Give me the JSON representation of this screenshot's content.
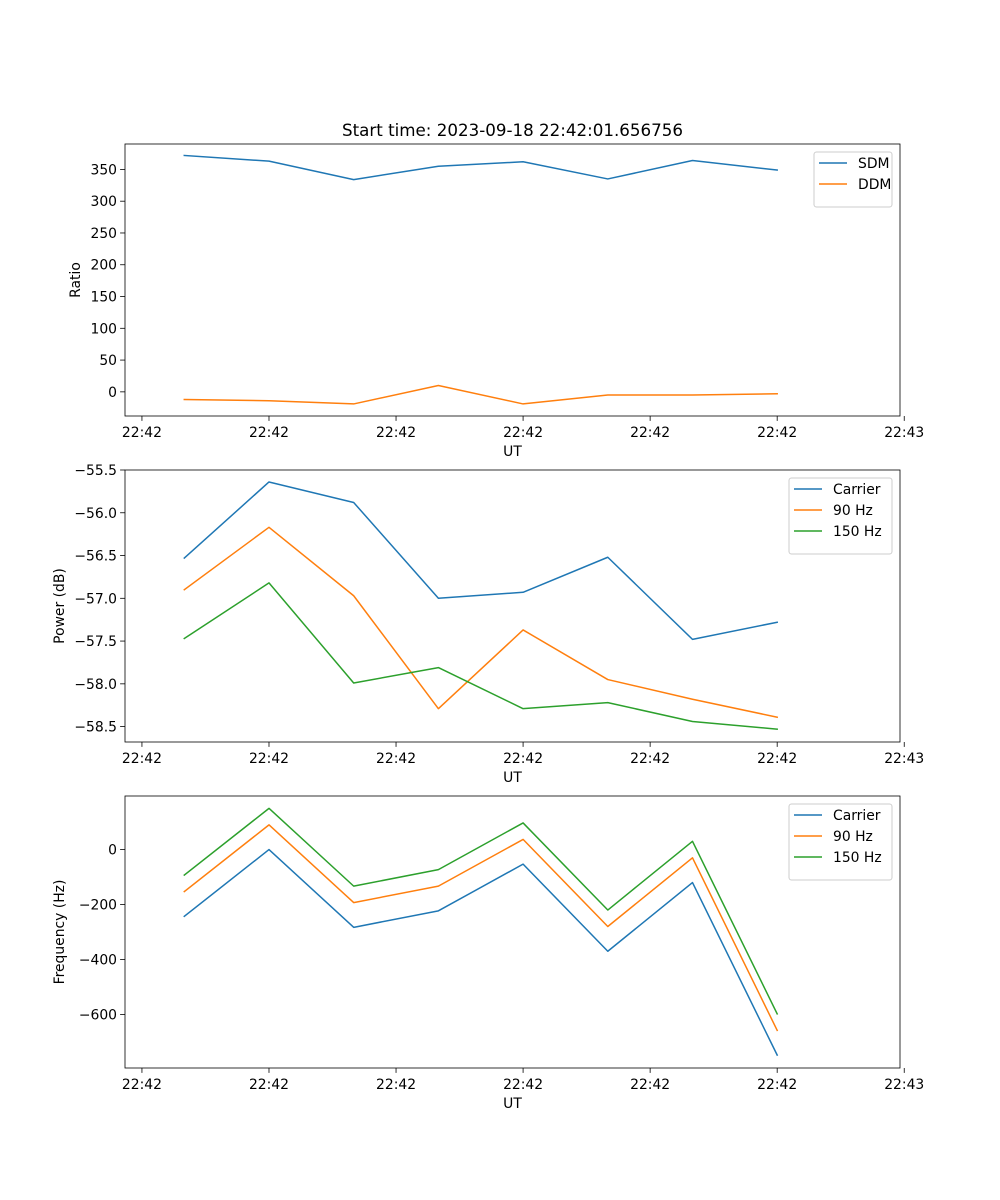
{
  "figure_title": "Start time: 2023-09-18 22:42:01.656756",
  "chart_data": [
    {
      "type": "line",
      "title": "Start time: 2023-09-18 22:42:01.656756",
      "xlabel": "UT",
      "ylabel": "Ratio",
      "x": [
        0,
        1,
        2,
        3,
        4,
        5,
        6,
        7
      ],
      "xlim": [
        -0.7,
        8.45
      ],
      "xticks": [
        {
          "value": -0.5,
          "label": "22:42"
        },
        {
          "value": 1.0,
          "label": "22:42"
        },
        {
          "value": 2.5,
          "label": "22:42"
        },
        {
          "value": 4.0,
          "label": "22:42"
        },
        {
          "value": 5.5,
          "label": "22:42"
        },
        {
          "value": 7.0,
          "label": "22:42"
        },
        {
          "value": 8.5,
          "label": "22:43"
        }
      ],
      "ylim": [
        -38,
        390
      ],
      "yticks": [
        0,
        50,
        100,
        150,
        200,
        250,
        300,
        350
      ],
      "legend_position": "top-right",
      "series": [
        {
          "name": "SDM",
          "color": "#1f77b4",
          "values": [
            372,
            363,
            334,
            355,
            362,
            335,
            364,
            349
          ]
        },
        {
          "name": "DDM",
          "color": "#ff7f0e",
          "values": [
            -12,
            -14,
            -19,
            10,
            -19,
            -5,
            -5,
            -3
          ]
        }
      ]
    },
    {
      "type": "line",
      "title": "",
      "xlabel": "UT",
      "ylabel": "Power (dB)",
      "x": [
        0,
        1,
        2,
        3,
        4,
        5,
        6,
        7
      ],
      "xlim": [
        -0.7,
        8.45
      ],
      "xticks": [
        {
          "value": -0.5,
          "label": "22:42"
        },
        {
          "value": 1.0,
          "label": "22:42"
        },
        {
          "value": 2.5,
          "label": "22:42"
        },
        {
          "value": 4.0,
          "label": "22:42"
        },
        {
          "value": 5.5,
          "label": "22:42"
        },
        {
          "value": 7.0,
          "label": "22:42"
        },
        {
          "value": 8.5,
          "label": "22:43"
        }
      ],
      "ylim": [
        -58.68,
        -55.5
      ],
      "yticks": [
        -58.5,
        -58.0,
        -57.5,
        -57.0,
        -56.5,
        -56.0,
        -55.5
      ],
      "ytick_format": "fixed1",
      "legend_position": "top-right",
      "series": [
        {
          "name": "Carrier",
          "color": "#1f77b4",
          "values": [
            -56.53,
            -55.64,
            -55.88,
            -57.0,
            -56.93,
            -56.52,
            -57.48,
            -57.28
          ]
        },
        {
          "name": "90 Hz",
          "color": "#ff7f0e",
          "values": [
            -56.9,
            -56.17,
            -56.97,
            -58.29,
            -57.37,
            -57.95,
            -58.18,
            -58.39
          ]
        },
        {
          "name": "150 Hz",
          "color": "#2ca02c",
          "values": [
            -57.47,
            -56.82,
            -57.99,
            -57.81,
            -58.29,
            -58.22,
            -58.44,
            -58.53
          ]
        }
      ]
    },
    {
      "type": "line",
      "title": "",
      "xlabel": "UT",
      "ylabel": "Frequency (Hz)",
      "x": [
        0,
        1,
        2,
        3,
        4,
        5,
        6,
        7
      ],
      "xlim": [
        -0.7,
        8.45
      ],
      "xticks": [
        {
          "value": -0.5,
          "label": "22:42"
        },
        {
          "value": 1.0,
          "label": "22:42"
        },
        {
          "value": 2.5,
          "label": "22:42"
        },
        {
          "value": 4.0,
          "label": "22:42"
        },
        {
          "value": 5.5,
          "label": "22:42"
        },
        {
          "value": 7.0,
          "label": "22:42"
        },
        {
          "value": 8.5,
          "label": "22:43"
        }
      ],
      "ylim": [
        -795,
        195
      ],
      "yticks": [
        -600,
        -400,
        -200,
        0
      ],
      "legend_position": "top-right",
      "series": [
        {
          "name": "Carrier",
          "color": "#1f77b4",
          "values": [
            -243,
            0,
            -283,
            -223,
            -53,
            -370,
            -120,
            -748
          ]
        },
        {
          "name": "90 Hz",
          "color": "#ff7f0e",
          "values": [
            -153,
            90,
            -193,
            -133,
            37,
            -280,
            -30,
            -658
          ]
        },
        {
          "name": "150 Hz",
          "color": "#2ca02c",
          "values": [
            -93,
            150,
            -133,
            -73,
            97,
            -220,
            30,
            -598
          ]
        }
      ]
    }
  ]
}
